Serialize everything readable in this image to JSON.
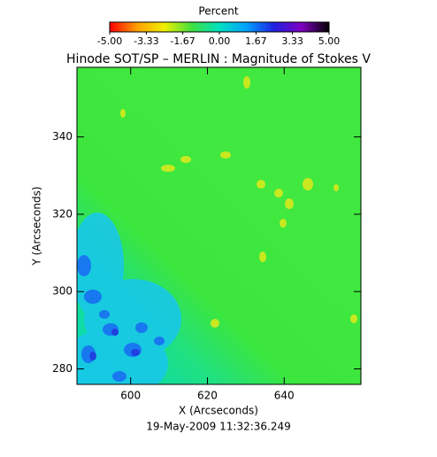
{
  "chart_data": {
    "type": "image",
    "title": "Hinode SOT/SP – MERLIN : Magnitude of Stokes V",
    "subtitle": "19-May-2009 11:32:36.249",
    "x_label": "X (Arcseconds)",
    "y_label": "Y (Arcseconds)",
    "xlim": [
      586,
      660
    ],
    "xticks": [
      600,
      620,
      640
    ],
    "ylim": [
      276,
      358
    ],
    "yticks": [
      280,
      300,
      320,
      340
    ],
    "colorbar": {
      "title": "Percent",
      "clim": [
        -5,
        5
      ],
      "ticks": [
        {
          "value": -5,
          "label": "-5.00"
        },
        {
          "value": -3.33,
          "label": "-3.33"
        },
        {
          "value": -1.67,
          "label": "-1.67"
        },
        {
          "value": 0,
          "label": "0.00"
        },
        1.67,
        3.33,
        {
          "value": 5,
          "label": "5.00"
        }
      ],
      "colors": [
        "#ff0000",
        "#ffa000",
        "#f0f000",
        "#40e040",
        "#00e0c0",
        "#00a0ff",
        "#2020e0",
        "#8000c0",
        "#000000"
      ]
    }
  }
}
